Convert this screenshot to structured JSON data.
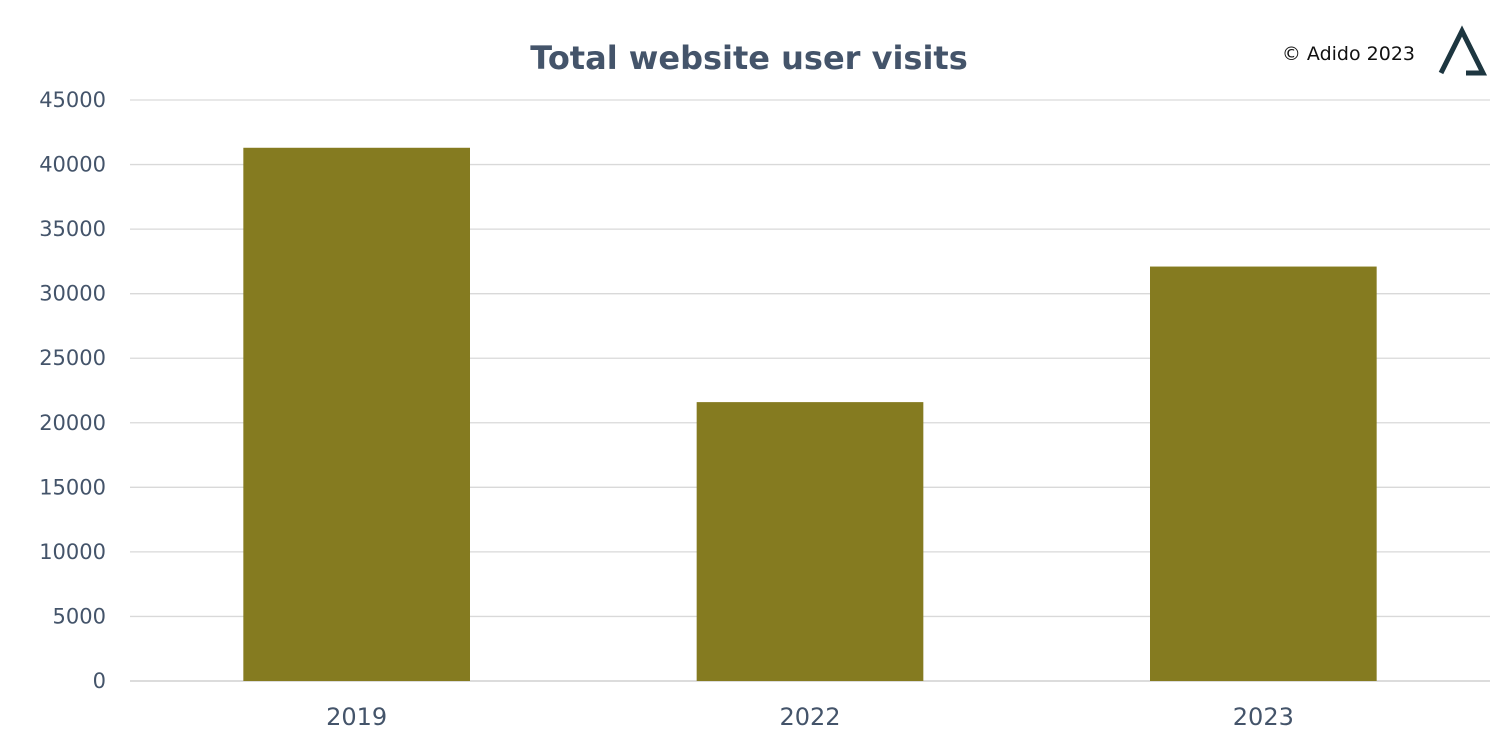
{
  "chart_data": {
    "type": "bar",
    "title": "Total website user visits",
    "categories": [
      "2019",
      "2022",
      "2023"
    ],
    "values": [
      41300,
      21600,
      32100
    ],
    "xlabel": "",
    "ylabel": "",
    "ylim": [
      0,
      45000
    ],
    "yticks": [
      0,
      5000,
      10000,
      15000,
      20000,
      25000,
      30000,
      35000,
      40000,
      45000
    ],
    "grid": true,
    "legend": "none",
    "bar_color": "#857b20"
  },
  "branding": {
    "copyright": "© Adido 2023",
    "logo_icon": "adido-delta-logo",
    "logo_color": "#1d3640"
  }
}
